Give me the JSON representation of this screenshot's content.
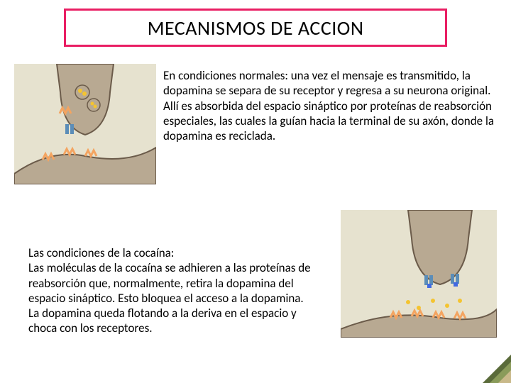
{
  "title": {
    "text": "MECANISMOS DE ACCION",
    "border_color": "#e91e63",
    "background_color": "#ffffff",
    "text_color": "#000000",
    "fontsize": 28
  },
  "section1": {
    "paragraph": "En condiciones normales: una vez el mensaje es transmitido, la dopamina se separa de su receptor y regresa a su neurona original. Allí es absorbida del espacio sináptico por proteínas de reabsorción especiales, las cuales la guían hacia la terminal de su axón, donde la dopamina es reciclada.",
    "figure": {
      "type": "diagram",
      "description": "neuron-synapse-normal",
      "colors": {
        "background": "#e6e2cf",
        "neuron_body": "#b8a992",
        "neuron_outline": "#6b5b4a",
        "dopamine": "#f4c430",
        "receptor": "#f4a460",
        "transporter": "#5b8db8"
      }
    }
  },
  "section2": {
    "paragraph": "Las condiciones de la cocaína:\nLas moléculas de la cocaína se adhieren a las proteínas de reabsorción que, normalmente, retira la dopamina del espacio sináptico. Esto bloquea el acceso a la dopamina.\nLa dopamina queda flotando a la deriva en el espacio y choca con los receptores.",
    "figure": {
      "type": "diagram",
      "description": "neuron-synapse-cocaine",
      "colors": {
        "background": "#e6e2cf",
        "neuron_body": "#b8a992",
        "neuron_outline": "#6b5b4a",
        "dopamine": "#f4c430",
        "receptor": "#f4a460",
        "transporter": "#5b8db8",
        "cocaine": "#4169e1"
      }
    }
  },
  "corner": {
    "colors": [
      "#5a6b3a",
      "#8a9b5a",
      "#c9b98a"
    ]
  },
  "page_background": "#ffffff",
  "body_fontsize": 17
}
